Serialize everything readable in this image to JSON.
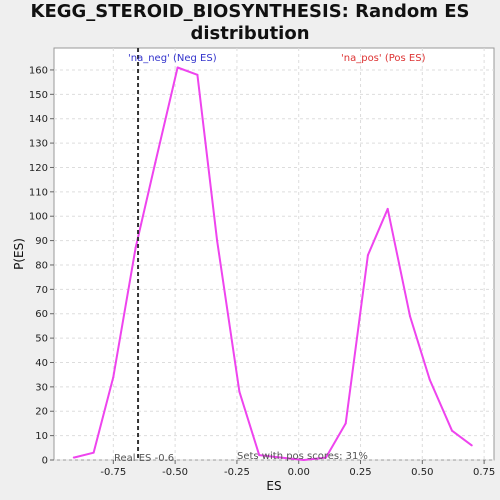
{
  "chart_data": {
    "type": "line",
    "title_line1": "KEGG_STEROID_BIOSYNTHESIS: Random ES",
    "title_line2": "distribution",
    "xlabel": "ES",
    "ylabel": "P(ES)",
    "xlim": [
      -0.99,
      0.79
    ],
    "ylim": [
      0,
      169
    ],
    "x_ticks": [
      -0.75,
      -0.5,
      -0.25,
      0.0,
      0.25,
      0.5,
      0.75
    ],
    "x_tick_labels": [
      "-0.75",
      "-0.50",
      "-0.25",
      "0.00",
      "0.25",
      "0.50",
      "0.75"
    ],
    "y_ticks": [
      0,
      10,
      20,
      30,
      40,
      50,
      60,
      70,
      80,
      90,
      100,
      110,
      120,
      130,
      140,
      150,
      160
    ],
    "grid": true,
    "series": [
      {
        "color": "#ee44ee",
        "x": [
          -0.91,
          -0.83,
          -0.75,
          -0.66,
          -0.58,
          -0.49,
          -0.41,
          -0.33,
          -0.24,
          -0.16,
          -0.07,
          0.02,
          0.11,
          0.19,
          0.28,
          0.36,
          0.45,
          0.53,
          0.62,
          0.7
        ],
        "y": [
          1,
          3,
          34,
          87,
          122,
          161,
          158,
          90,
          28,
          2,
          1,
          0,
          1,
          15,
          84,
          103,
          59,
          33,
          12,
          6
        ]
      }
    ],
    "real_es": -0.65,
    "annotations": {
      "neg_label": "'na_neg' (Neg ES)",
      "pos_label": "'na_pos' (Pos ES)",
      "real_es_label": "Real ES -0.6",
      "pos_fraction_label": "Sets with pos scores: 31%",
      "neg_color": "#3333cc",
      "pos_color": "#dd3333"
    }
  }
}
